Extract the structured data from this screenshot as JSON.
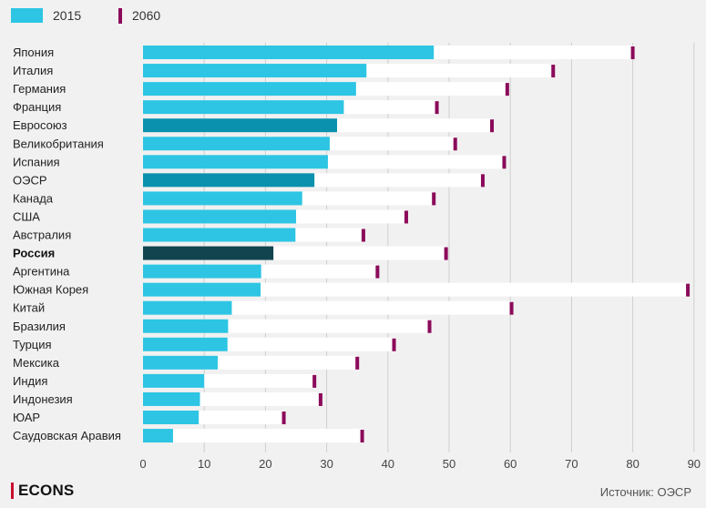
{
  "chart_data": {
    "type": "bar",
    "orientation": "horizontal",
    "categories": [
      "Япония",
      "Италия",
      "Германия",
      "Франция",
      "Евросоюз",
      "Великобритания",
      "Испания",
      "ОЭСР",
      "Канада",
      "США",
      "Австралия",
      "Россия",
      "Аргентина",
      "Южная Корея",
      "Китай",
      "Бразилия",
      "Турция",
      "Мексика",
      "Индия",
      "Индонезия",
      "ЮАР",
      "Саудовская Аравия"
    ],
    "series": [
      {
        "name": "2015",
        "values": [
          47.5,
          36.5,
          34.8,
          32.8,
          31.7,
          30.5,
          30.2,
          28.0,
          26.0,
          25.0,
          24.9,
          21.3,
          19.3,
          19.2,
          14.5,
          13.9,
          13.8,
          12.2,
          10.0,
          9.3,
          9.1,
          4.9
        ]
      },
      {
        "name": "2060",
        "values": [
          80.0,
          67.0,
          59.5,
          48.0,
          57.0,
          51.0,
          59.0,
          55.5,
          47.5,
          43.0,
          36.0,
          49.5,
          38.3,
          89.0,
          60.2,
          46.8,
          41.0,
          35.0,
          28.0,
          29.0,
          23.0,
          35.8
        ]
      }
    ],
    "highlighted": {
      "Евросоюз": "#0a91ad",
      "ОЭСР": "#0a91ad",
      "Россия": "#12444f"
    },
    "bold_category": "Россия",
    "xlim": [
      0,
      90
    ],
    "xticks": [
      "0",
      "10",
      "20",
      "30",
      "40",
      "50",
      "60",
      "70",
      "80",
      "90"
    ],
    "grid": true,
    "legend_position": "top-left",
    "colors": {
      "bar_2015": "#2dc5e3",
      "marker_2060": "#8b0a5a",
      "track": "#ffffff",
      "grid": "#cfcfcf",
      "background": "#f1f1f1"
    }
  },
  "legend": {
    "label_2015": "2015",
    "label_2060": "2060"
  },
  "footer": {
    "brand": "ECONS",
    "source": "Источник: ОЭСР"
  }
}
